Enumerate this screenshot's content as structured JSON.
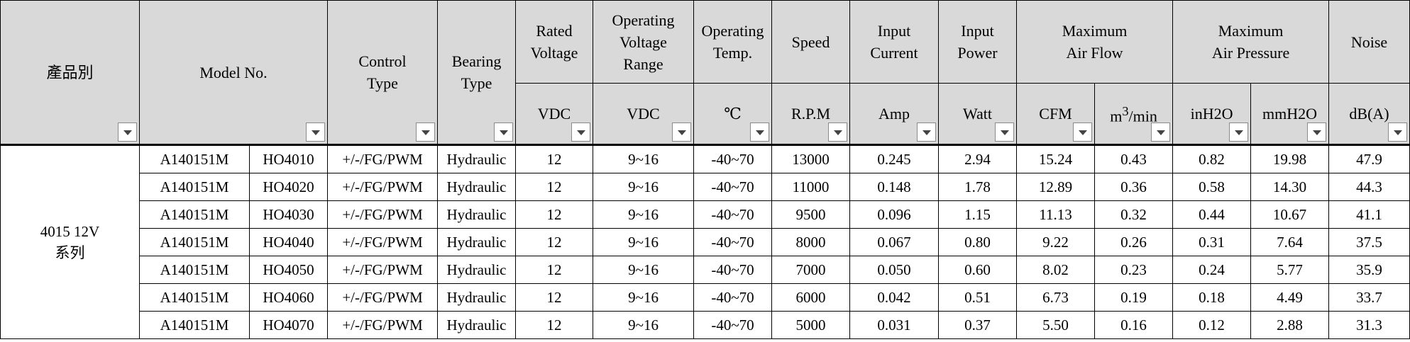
{
  "headers": {
    "product_category": "產品別",
    "model_no": "Model No.",
    "control_type": [
      "Control",
      "Type"
    ],
    "bearing_type": [
      "Bearing",
      "Type"
    ],
    "rated_voltage": [
      "Rated",
      "Voltage"
    ],
    "operating_voltage_range": [
      "Operating",
      "Voltage",
      "Range"
    ],
    "operating_temp": [
      "Operating",
      "Temp."
    ],
    "speed": "Speed",
    "input_current": [
      "Input",
      "Current"
    ],
    "input_power": [
      "Input",
      "Power"
    ],
    "max_air_flow": [
      "Maximum",
      "Air Flow"
    ],
    "max_air_pressure": [
      "Maximum",
      "Air Pressure"
    ],
    "noise": "Noise"
  },
  "units": {
    "rated_voltage": "VDC",
    "operating_voltage_range": "VDC",
    "operating_temp": "℃",
    "speed": "R.P.M",
    "input_current": "Amp",
    "input_power": "Watt",
    "air_flow_cfm": "CFM",
    "air_flow_m3": "m",
    "air_flow_m3_sup": "3",
    "air_flow_m3_suffix": "/min",
    "pressure_inh2o": "inH2O",
    "pressure_mmh2o": "mmH2O",
    "noise": "dB(A)"
  },
  "group": {
    "line1": "4015 12V",
    "line2": "系列"
  },
  "rows": [
    [
      "A140151M",
      "HO4010",
      "+/-/FG/PWM",
      "Hydraulic",
      "12",
      "9~16",
      "-40~70",
      "13000",
      "0.245",
      "2.94",
      "15.24",
      "0.43",
      "0.82",
      "19.98",
      "47.9"
    ],
    [
      "A140151M",
      "HO4020",
      "+/-/FG/PWM",
      "Hydraulic",
      "12",
      "9~16",
      "-40~70",
      "11000",
      "0.148",
      "1.78",
      "12.89",
      "0.36",
      "0.58",
      "14.30",
      "44.3"
    ],
    [
      "A140151M",
      "HO4030",
      "+/-/FG/PWM",
      "Hydraulic",
      "12",
      "9~16",
      "-40~70",
      "9500",
      "0.096",
      "1.15",
      "11.13",
      "0.32",
      "0.44",
      "10.67",
      "41.1"
    ],
    [
      "A140151M",
      "HO4040",
      "+/-/FG/PWM",
      "Hydraulic",
      "12",
      "9~16",
      "-40~70",
      "8000",
      "0.067",
      "0.80",
      "9.22",
      "0.26",
      "0.31",
      "7.64",
      "37.5"
    ],
    [
      "A140151M",
      "HO4050",
      "+/-/FG/PWM",
      "Hydraulic",
      "12",
      "9~16",
      "-40~70",
      "7000",
      "0.050",
      "0.60",
      "8.02",
      "0.23",
      "0.24",
      "5.77",
      "35.9"
    ],
    [
      "A140151M",
      "HO4060",
      "+/-/FG/PWM",
      "Hydraulic",
      "12",
      "9~16",
      "-40~70",
      "6000",
      "0.042",
      "0.51",
      "6.73",
      "0.19",
      "0.18",
      "4.49",
      "33.7"
    ],
    [
      "A140151M",
      "HO4070",
      "+/-/FG/PWM",
      "Hydraulic",
      "12",
      "9~16",
      "-40~70",
      "5000",
      "0.031",
      "0.37",
      "5.50",
      "0.16",
      "0.12",
      "2.88",
      "31.3"
    ]
  ]
}
